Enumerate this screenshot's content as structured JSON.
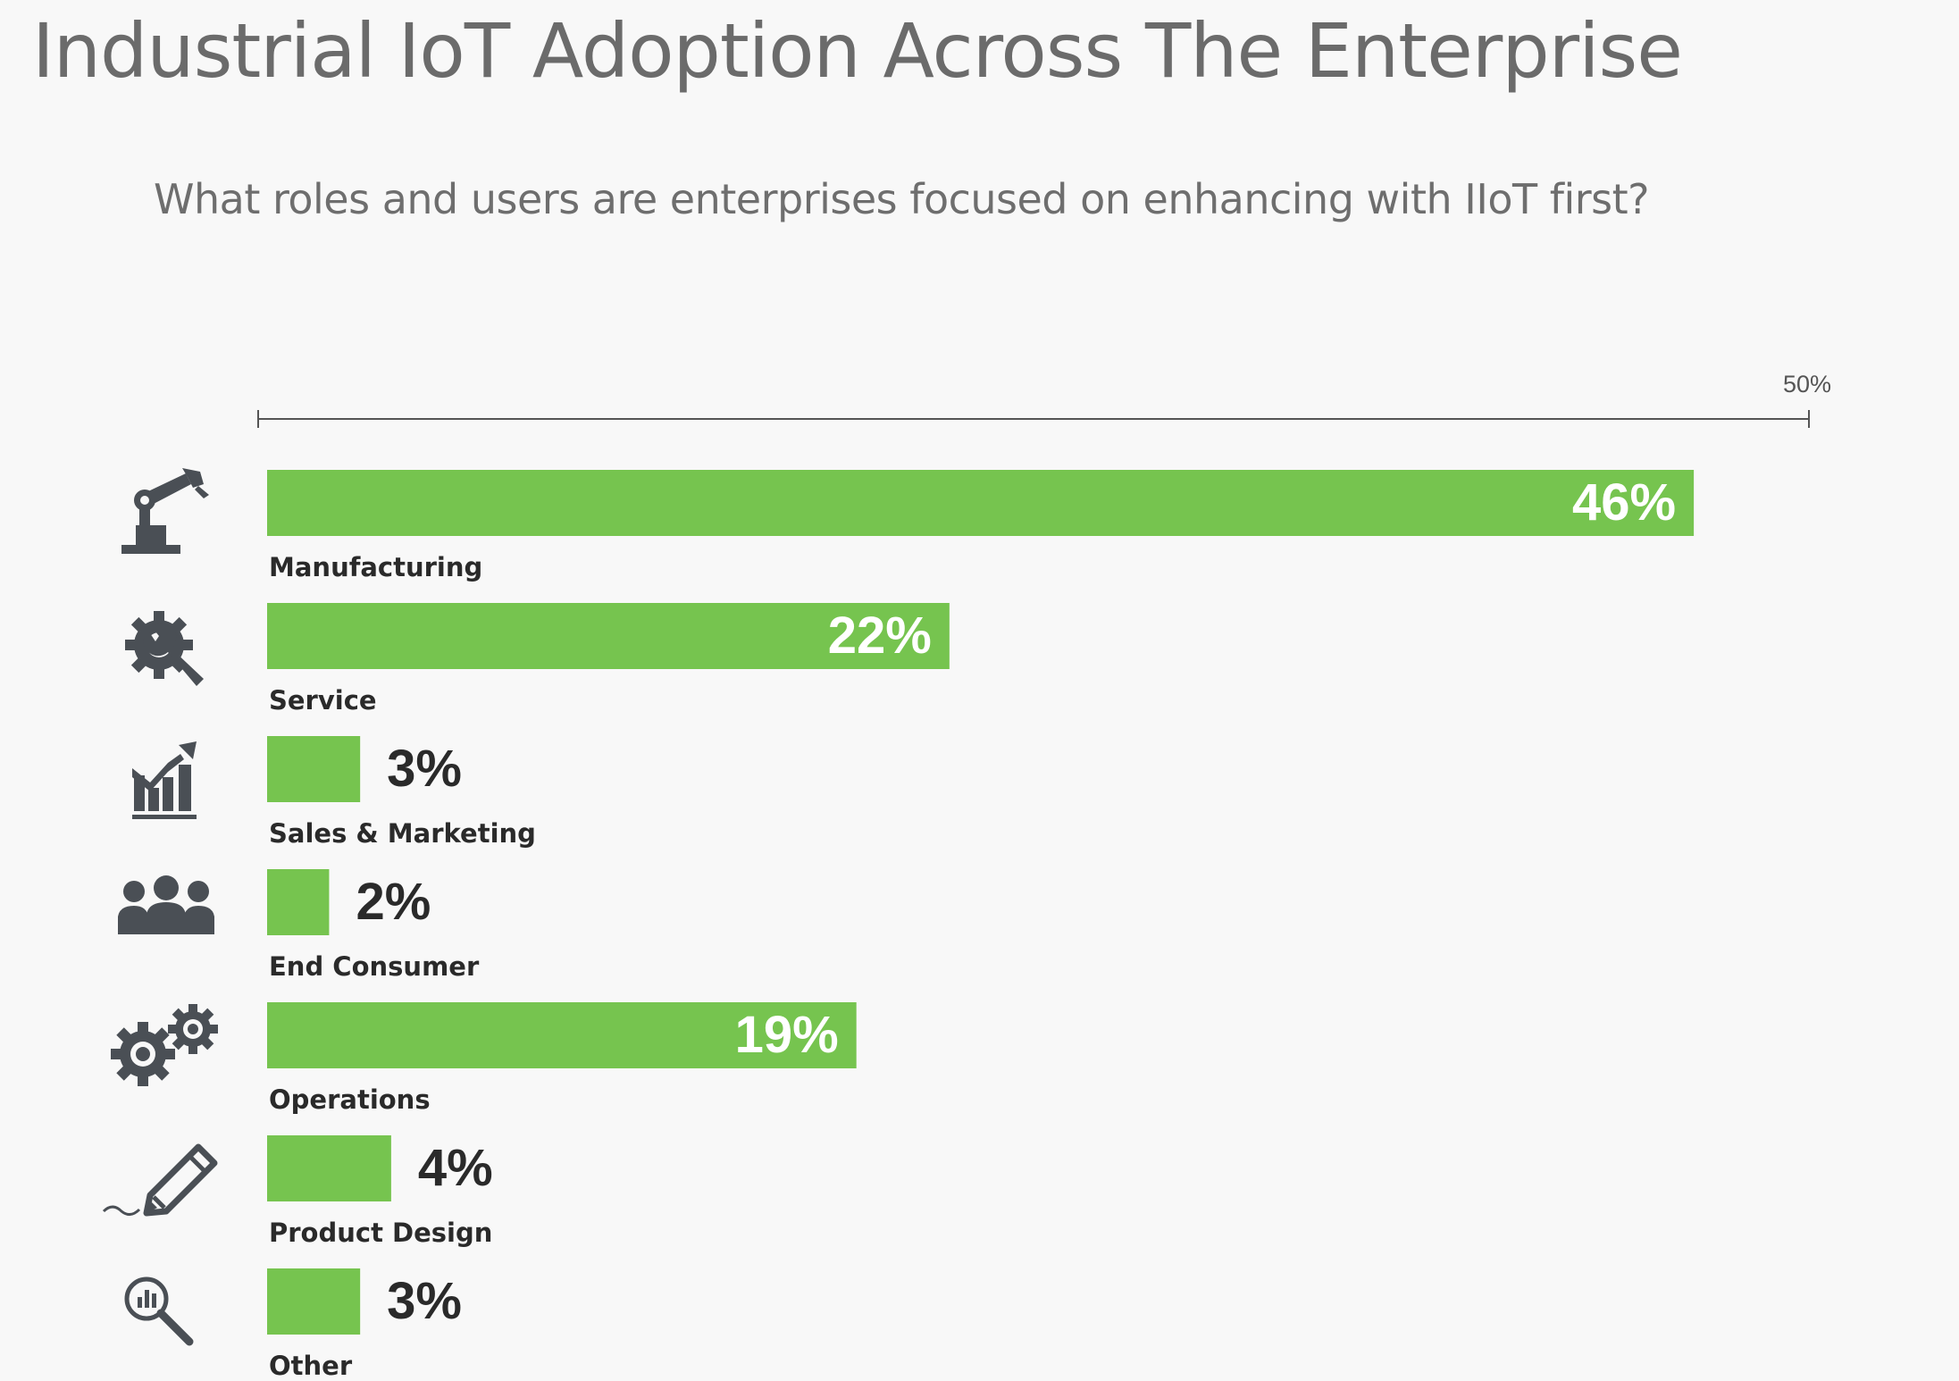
{
  "title": "Industrial IoT Adoption Across The Enterprise",
  "subtitle": "What roles and users are enterprises focused on enhancing with IIoT first?",
  "colors": {
    "bar": "#76c44f",
    "icon": "#4a4f55",
    "axis": "#555555"
  },
  "chart_data": {
    "type": "bar",
    "orientation": "horizontal",
    "title": "Industrial IoT Adoption Across The Enterprise",
    "subtitle": "What roles and users are enterprises focused on enhancing with IIoT first?",
    "axis_max_label": "50%",
    "xlim": [
      0,
      50
    ],
    "categories": [
      "Manufacturing",
      "Service",
      "Sales & Marketing",
      "End Consumer",
      "Operations",
      "Product Design",
      "Other"
    ],
    "values": [
      46,
      22,
      3,
      2,
      19,
      4,
      3
    ],
    "value_labels": [
      "46%",
      "22%",
      "3%",
      "2%",
      "19%",
      "4%",
      "3%"
    ],
    "icons": [
      "robot-arm-icon",
      "gear-wrench-icon",
      "growth-chart-icon",
      "people-icon",
      "gears-icon",
      "pencil-icon",
      "magnifier-chart-icon"
    ]
  }
}
